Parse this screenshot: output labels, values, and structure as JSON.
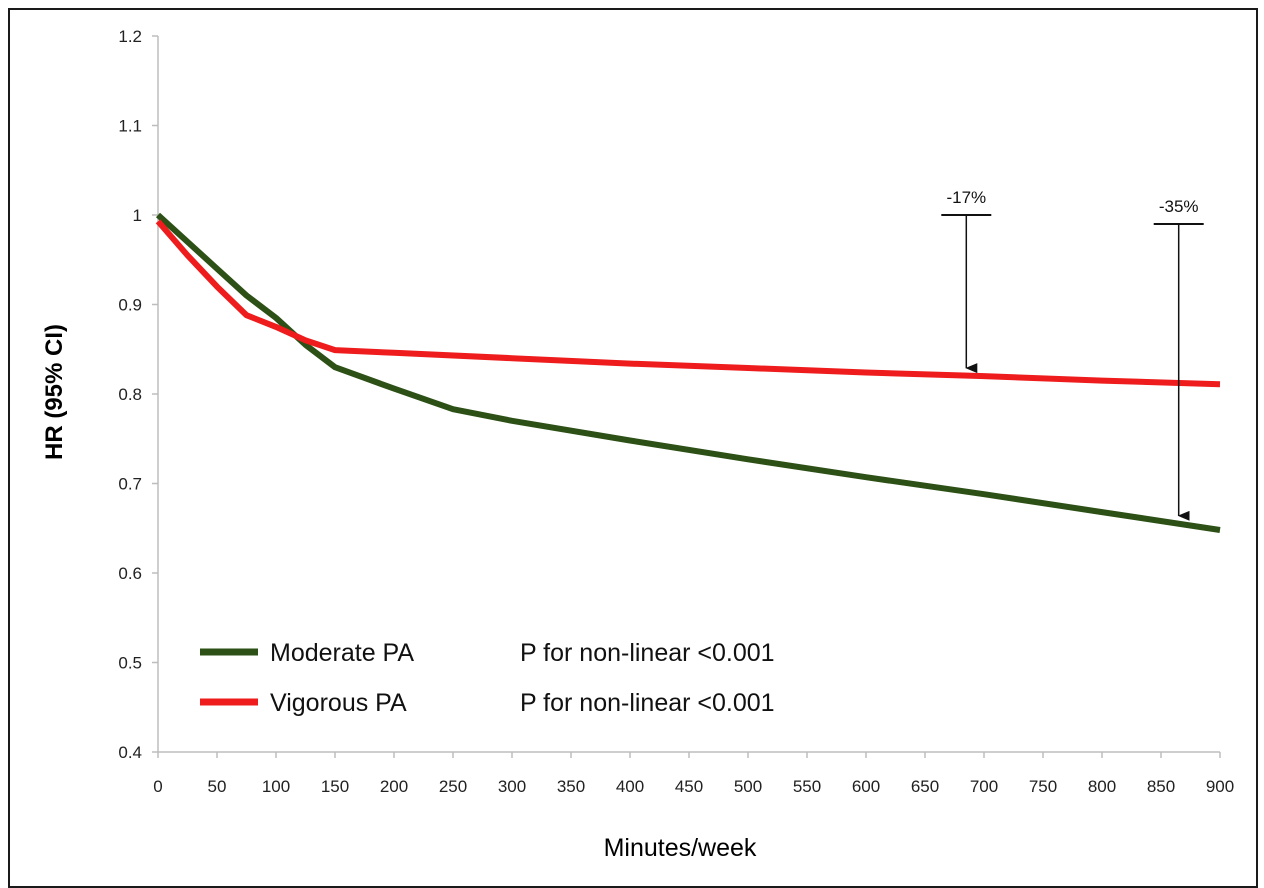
{
  "chart_data": {
    "type": "line",
    "xlabel": "Minutes/week",
    "ylabel": "HR (95% CI)",
    "xlim": [
      0,
      900
    ],
    "ylim": [
      0.4,
      1.2
    ],
    "xticks": [
      0,
      50,
      100,
      150,
      200,
      250,
      300,
      350,
      400,
      450,
      500,
      550,
      600,
      650,
      700,
      750,
      800,
      850,
      900
    ],
    "yticks": [
      "0.4",
      "0.5",
      "0.6",
      "0.7",
      "0.8",
      "0.9",
      "1",
      "1.1",
      "1.2"
    ],
    "grid": false,
    "legend_position": "bottom-left",
    "series": [
      {
        "name": "Moderate PA",
        "color": "#2d5016",
        "note": "P for non-linear <0.001",
        "x": [
          0,
          25,
          50,
          75,
          100,
          125,
          150,
          200,
          250,
          300,
          400,
          500,
          600,
          700,
          800,
          900
        ],
        "y": [
          1.0,
          0.97,
          0.94,
          0.91,
          0.885,
          0.855,
          0.83,
          0.806,
          0.783,
          0.77,
          0.748,
          0.727,
          0.707,
          0.688,
          0.668,
          0.648
        ]
      },
      {
        "name": "Vigorous PA",
        "color": "#ee1c1c",
        "note": "P for non-linear <0.001",
        "x": [
          0,
          25,
          50,
          75,
          100,
          125,
          150,
          200,
          300,
          400,
          500,
          600,
          700,
          800,
          900
        ],
        "y": [
          0.993,
          0.955,
          0.92,
          0.888,
          0.875,
          0.86,
          0.849,
          0.846,
          0.84,
          0.834,
          0.829,
          0.824,
          0.82,
          0.815,
          0.811
        ]
      }
    ],
    "annotations": [
      {
        "label": "-17%",
        "x": 685,
        "y_top": 1.0,
        "y_bottom": 0.82
      },
      {
        "label": "-35%",
        "x": 865,
        "y_top": 0.99,
        "y_bottom": 0.655
      }
    ]
  }
}
